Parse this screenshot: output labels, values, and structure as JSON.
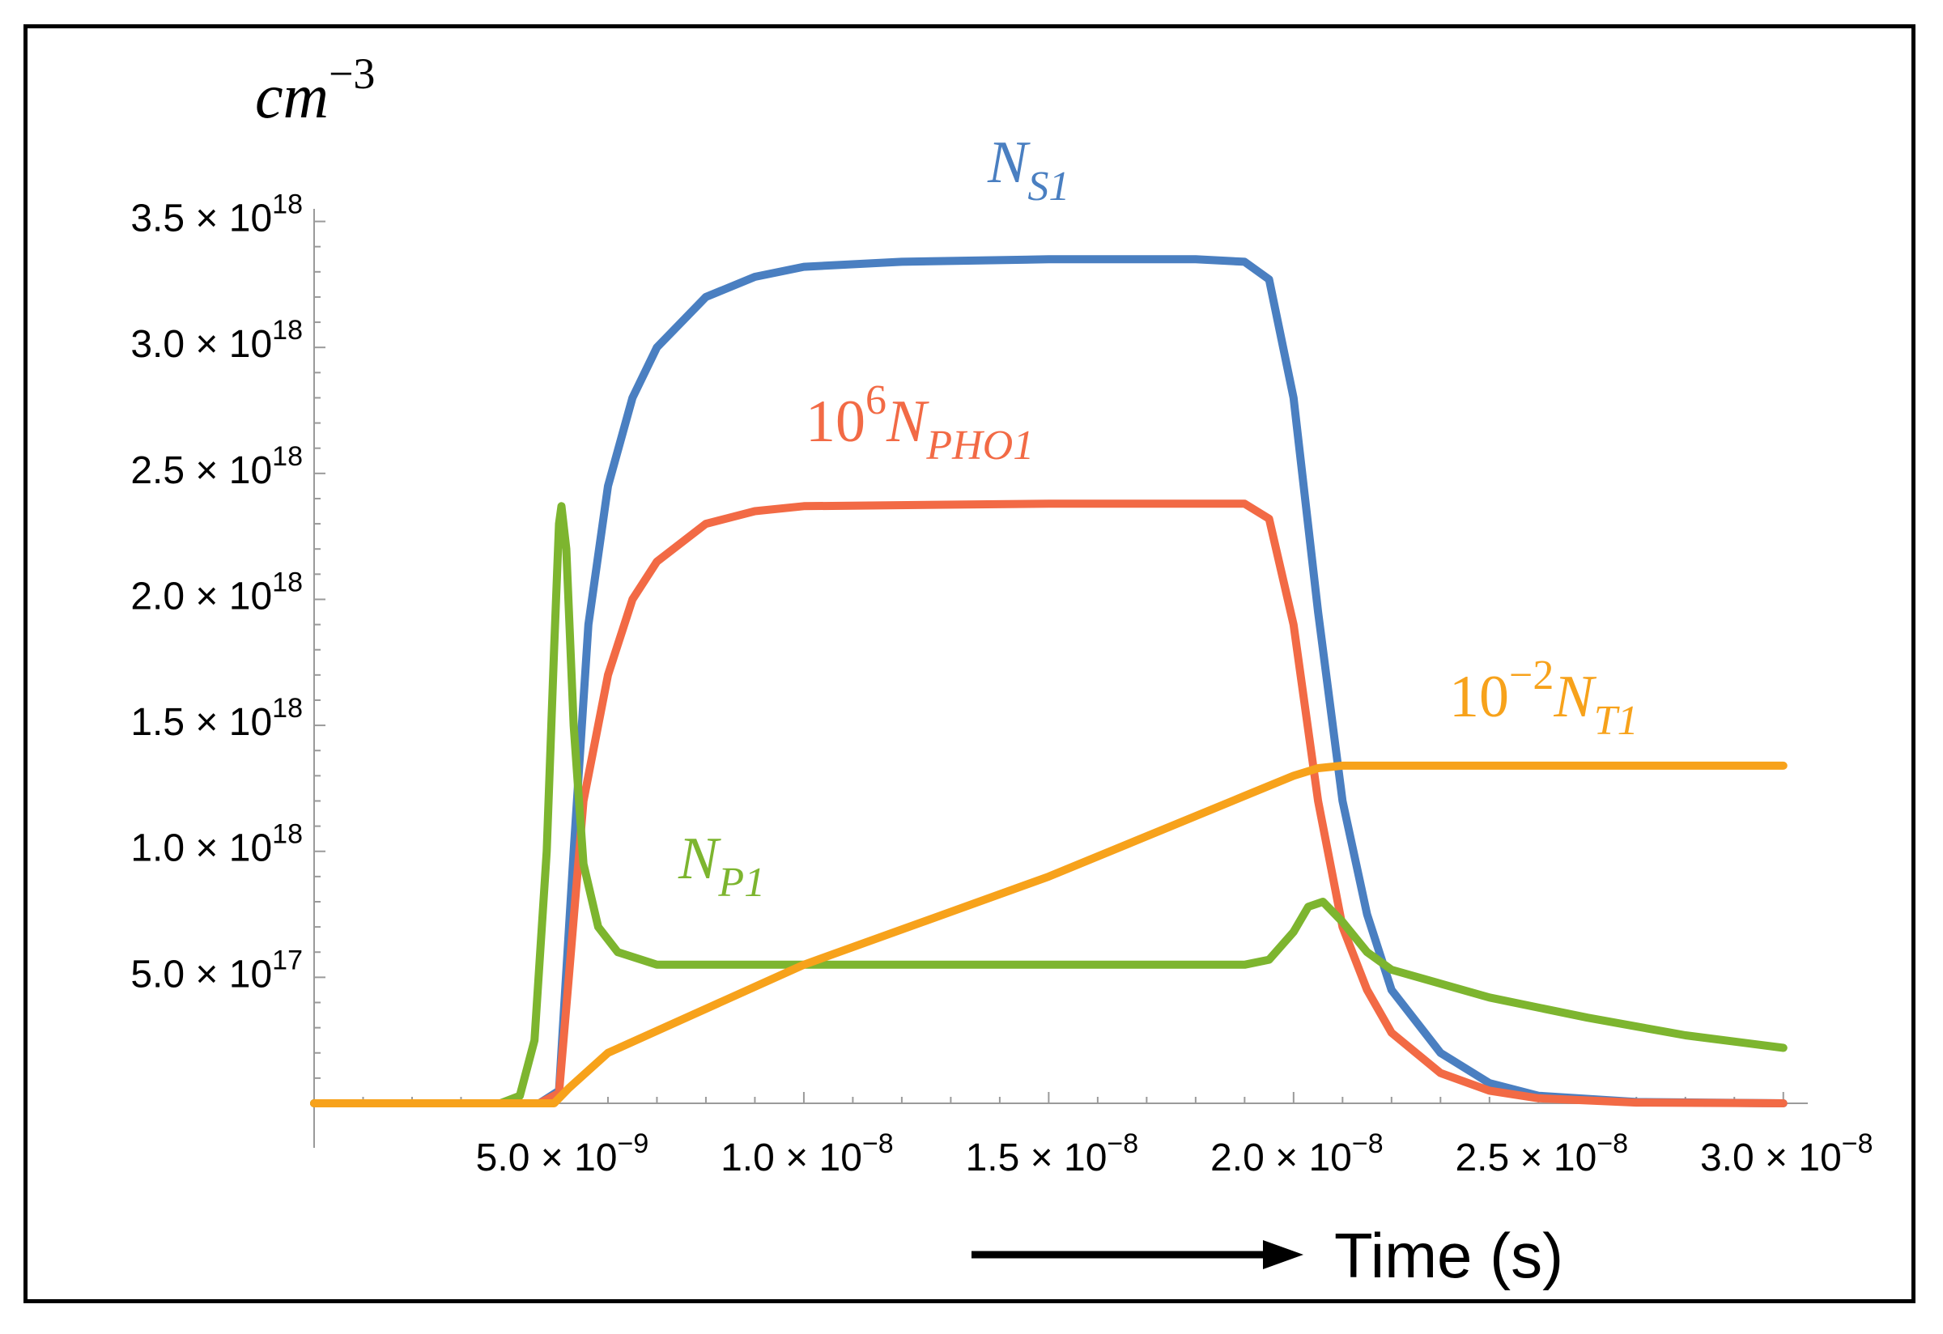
{
  "chart_data": {
    "type": "line",
    "title": "",
    "ylabel": {
      "base": "cm",
      "exp": "−3"
    },
    "xlabel": "Time (s)",
    "xlim": [
      0,
      3.05e-08
    ],
    "ylim": [
      0,
      3.55e+18
    ],
    "x_ticks": [
      {
        "value": 5e-09,
        "mantissa": "5.0",
        "exponent": "−9"
      },
      {
        "value": 1e-08,
        "mantissa": "1.0",
        "exponent": "−8"
      },
      {
        "value": 1.5e-08,
        "mantissa": "1.5",
        "exponent": "−8"
      },
      {
        "value": 2e-08,
        "mantissa": "2.0",
        "exponent": "−8"
      },
      {
        "value": 2.5e-08,
        "mantissa": "2.5",
        "exponent": "−8"
      },
      {
        "value": 3e-08,
        "mantissa": "3.0",
        "exponent": "−8"
      }
    ],
    "y_ticks": [
      {
        "value": 5e+17,
        "mantissa": "5.0",
        "exponent": "17"
      },
      {
        "value": 1e+18,
        "mantissa": "1.0",
        "exponent": "18"
      },
      {
        "value": 1.5e+18,
        "mantissa": "1.5",
        "exponent": "18"
      },
      {
        "value": 2e+18,
        "mantissa": "2.0",
        "exponent": "18"
      },
      {
        "value": 2.5e+18,
        "mantissa": "2.5",
        "exponent": "18"
      },
      {
        "value": 3e+18,
        "mantissa": "3.0",
        "exponent": "18"
      },
      {
        "value": 3.5e+18,
        "mantissa": "3.5",
        "exponent": "18"
      }
    ],
    "times_sign": "×",
    "tick_base": "10",
    "series": [
      {
        "name": "N_S1",
        "label": {
          "prefix": "",
          "prefix_exp": "",
          "base": "N",
          "sub": "S1"
        },
        "color": "#4a7fc1",
        "points": [
          [
            0,
            0
          ],
          [
            4.6e-09,
            0
          ],
          [
            5e-09,
            5e+16
          ],
          [
            5.3e-09,
            1e+18
          ],
          [
            5.6e-09,
            1.9e+18
          ],
          [
            6e-09,
            2.45e+18
          ],
          [
            6.5e-09,
            2.8e+18
          ],
          [
            7e-09,
            3e+18
          ],
          [
            8e-09,
            3.2e+18
          ],
          [
            9e-09,
            3.28e+18
          ],
          [
            1e-08,
            3.32e+18
          ],
          [
            1.2e-08,
            3.34e+18
          ],
          [
            1.5e-08,
            3.35e+18
          ],
          [
            1.8e-08,
            3.35e+18
          ],
          [
            1.9e-08,
            3.34e+18
          ],
          [
            1.95e-08,
            3.27e+18
          ],
          [
            2e-08,
            2.8e+18
          ],
          [
            2.05e-08,
            1.95e+18
          ],
          [
            2.1e-08,
            1.2e+18
          ],
          [
            2.15e-08,
            7.5e+17
          ],
          [
            2.2e-08,
            4.5e+17
          ],
          [
            2.3e-08,
            2e+17
          ],
          [
            2.4e-08,
            8e+16
          ],
          [
            2.5e-08,
            3e+16
          ],
          [
            2.7e-08,
            5000000000000000.0
          ],
          [
            3e-08,
            0
          ]
        ]
      },
      {
        "name": "10^6 N_PHO1",
        "label": {
          "prefix": "10",
          "prefix_exp": "6",
          "base": "N",
          "sub": "PHO1"
        },
        "color": "#f26a45",
        "points": [
          [
            0,
            0
          ],
          [
            4.6e-09,
            0
          ],
          [
            5e-09,
            4e+16
          ],
          [
            5.2e-09,
            5e+17
          ],
          [
            5.5e-09,
            1.2e+18
          ],
          [
            6e-09,
            1.7e+18
          ],
          [
            6.5e-09,
            2e+18
          ],
          [
            7e-09,
            2.15e+18
          ],
          [
            8e-09,
            2.3e+18
          ],
          [
            9e-09,
            2.35e+18
          ],
          [
            1e-08,
            2.37e+18
          ],
          [
            1.5e-08,
            2.38e+18
          ],
          [
            1.9e-08,
            2.38e+18
          ],
          [
            1.95e-08,
            2.32e+18
          ],
          [
            2e-08,
            1.9e+18
          ],
          [
            2.05e-08,
            1.2e+18
          ],
          [
            2.1e-08,
            7e+17
          ],
          [
            2.15e-08,
            4.5e+17
          ],
          [
            2.2e-08,
            2.8e+17
          ],
          [
            2.3e-08,
            1.2e+17
          ],
          [
            2.4e-08,
            5e+16
          ],
          [
            2.5e-08,
            2e+16
          ],
          [
            2.7e-08,
            3000000000000000.0
          ],
          [
            3e-08,
            0
          ]
        ]
      },
      {
        "name": "N_P1",
        "label": {
          "prefix": "",
          "prefix_exp": "",
          "base": "N",
          "sub": "P1"
        },
        "color": "#7db52f",
        "points": [
          [
            0,
            0
          ],
          [
            3.8e-09,
            0
          ],
          [
            4.2e-09,
            3e+16
          ],
          [
            4.5e-09,
            2.5e+17
          ],
          [
            4.75e-09,
            1e+18
          ],
          [
            4.9e-09,
            1.8e+18
          ],
          [
            5e-09,
            2.3e+18
          ],
          [
            5.05e-09,
            2.37e+18
          ],
          [
            5.15e-09,
            2.2e+18
          ],
          [
            5.3e-09,
            1.5e+18
          ],
          [
            5.5e-09,
            9.5e+17
          ],
          [
            5.8e-09,
            7e+17
          ],
          [
            6.2e-09,
            6e+17
          ],
          [
            7e-09,
            5.5e+17
          ],
          [
            1e-08,
            5.5e+17
          ],
          [
            1.5e-08,
            5.5e+17
          ],
          [
            1.9e-08,
            5.5e+17
          ],
          [
            1.95e-08,
            5.7e+17
          ],
          [
            2e-08,
            6.8e+17
          ],
          [
            2.03e-08,
            7.8e+17
          ],
          [
            2.06e-08,
            8e+17
          ],
          [
            2.1e-08,
            7.2e+17
          ],
          [
            2.15e-08,
            6e+17
          ],
          [
            2.2e-08,
            5.3e+17
          ],
          [
            2.4e-08,
            4.2e+17
          ],
          [
            2.6e-08,
            3.4e+17
          ],
          [
            2.8e-08,
            2.7e+17
          ],
          [
            3e-08,
            2.2e+17
          ]
        ]
      },
      {
        "name": "10^-2 N_T1",
        "label": {
          "prefix": "10",
          "prefix_exp": "−2",
          "base": "N",
          "sub": "T1"
        },
        "color": "#f7a21b",
        "points": [
          [
            0,
            0
          ],
          [
            4.9e-09,
            0
          ],
          [
            5.2e-09,
            6e+16
          ],
          [
            6e-09,
            2e+17
          ],
          [
            1e-08,
            5.5e+17
          ],
          [
            1.5e-08,
            9e+17
          ],
          [
            1.9e-08,
            1.22e+18
          ],
          [
            2e-08,
            1.3e+18
          ],
          [
            2.05e-08,
            1.33e+18
          ],
          [
            2.1e-08,
            1.34e+18
          ],
          [
            3e-08,
            1.34e+18
          ]
        ]
      }
    ]
  }
}
